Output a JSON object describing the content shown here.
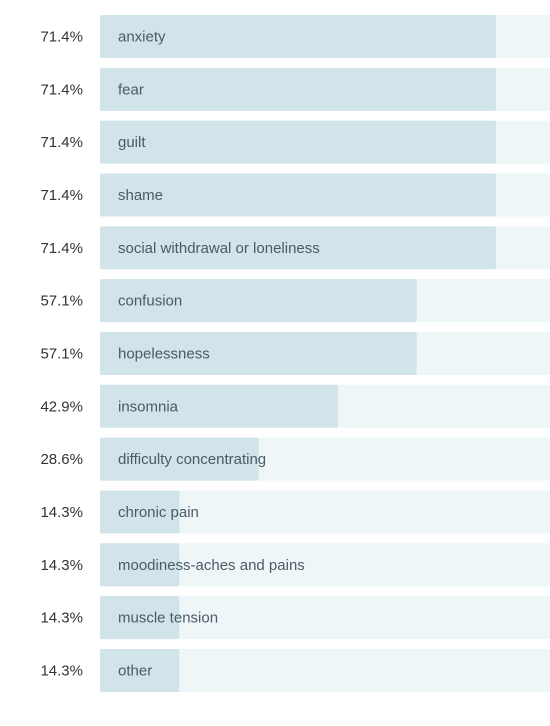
{
  "chart_data": {
    "type": "bar",
    "orientation": "horizontal",
    "color": "#d0e4e9",
    "categories": [
      "anxiety",
      "fear",
      "guilt",
      "shame",
      "social withdrawal or loneliness",
      "confusion",
      "hopelessness",
      "insomnia",
      "difficulty concentrating",
      "chronic pain",
      "moodiness-aches and pains",
      "muscle tension",
      "other"
    ],
    "values": [
      71.4,
      71.4,
      71.4,
      71.4,
      71.4,
      57.1,
      57.1,
      42.9,
      28.6,
      14.3,
      14.3,
      14.3,
      14.3
    ],
    "value_labels": [
      "71.4%",
      "71.4%",
      "71.4%",
      "71.4%",
      "71.4%",
      "57.1%",
      "57.1%",
      "42.9%",
      "28.6%",
      "14.3%",
      "14.3%",
      "14.3%",
      "14.3%"
    ]
  }
}
